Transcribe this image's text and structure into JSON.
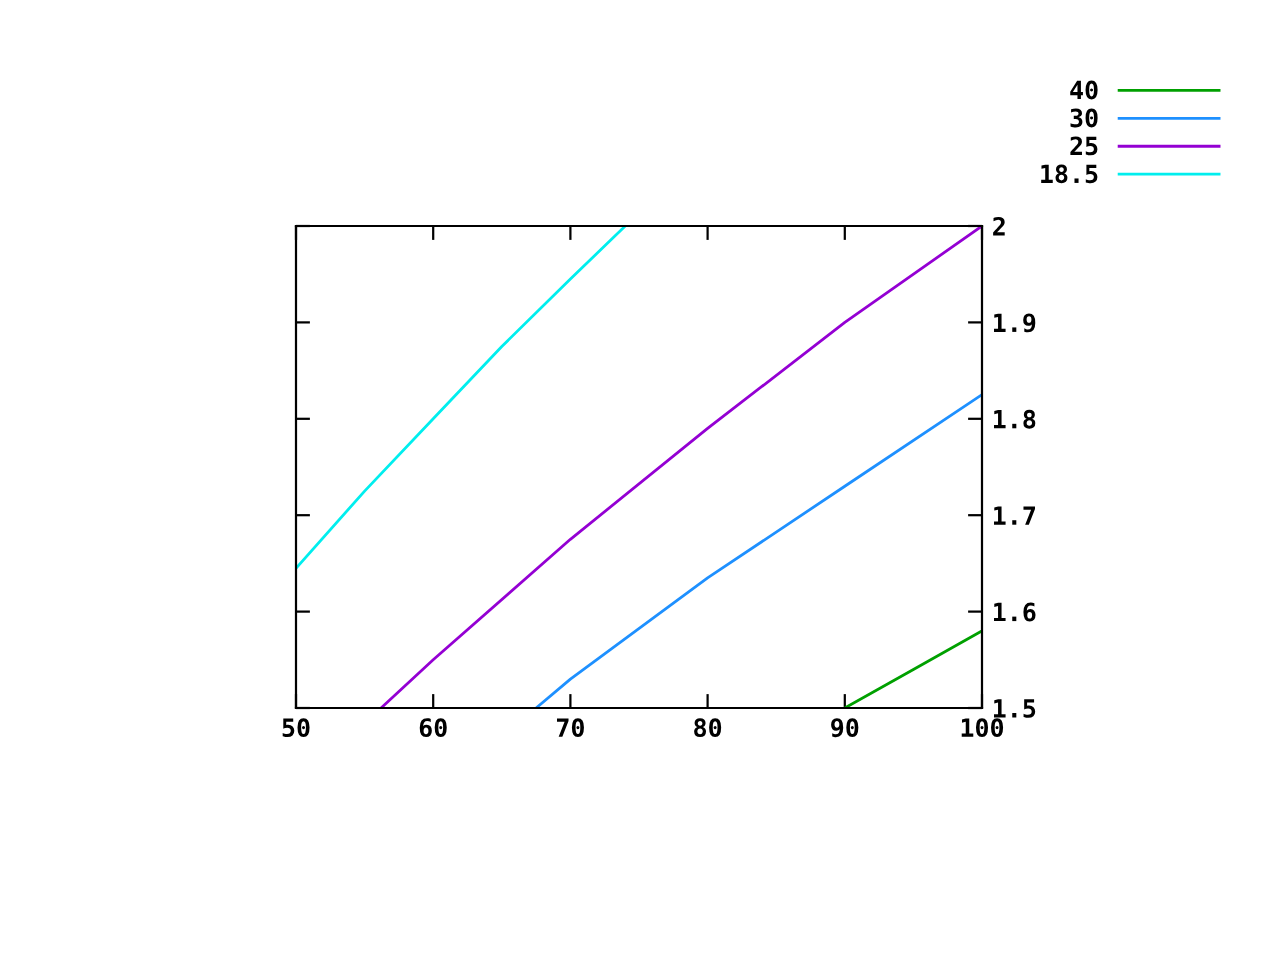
{
  "chart_data": {
    "type": "line",
    "xlim": [
      50,
      100
    ],
    "ylim": [
      1.5,
      2
    ],
    "xticks": [
      50,
      60,
      70,
      80,
      90,
      100
    ],
    "yticks": [
      1.5,
      1.6,
      1.7,
      1.8,
      1.9,
      2
    ],
    "tick_labels": "xy2",
    "grid": false,
    "legend": "top right",
    "marker": "none",
    "line_style": "solid",
    "series": [
      {
        "name": "40",
        "color": "#00a000",
        "x": [
          90,
          95,
          100
        ],
        "values": [
          1.5,
          1.54,
          1.58
        ]
      },
      {
        "name": "30",
        "color": "#1e90ff",
        "x": [
          67.5,
          70,
          80,
          90,
          100
        ],
        "values": [
          1.5,
          1.53,
          1.635,
          1.73,
          1.825
        ]
      },
      {
        "name": "25",
        "color": "#9400d3",
        "x": [
          56.2,
          60,
          70,
          80,
          90,
          100
        ],
        "values": [
          1.5,
          1.55,
          1.675,
          1.79,
          1.9,
          2.0
        ]
      },
      {
        "name": "18.5",
        "color": "#00eeee",
        "x": [
          50,
          55,
          60,
          65,
          70,
          74
        ],
        "values": [
          1.645,
          1.725,
          1.8,
          1.875,
          1.945,
          2.0
        ]
      }
    ]
  }
}
